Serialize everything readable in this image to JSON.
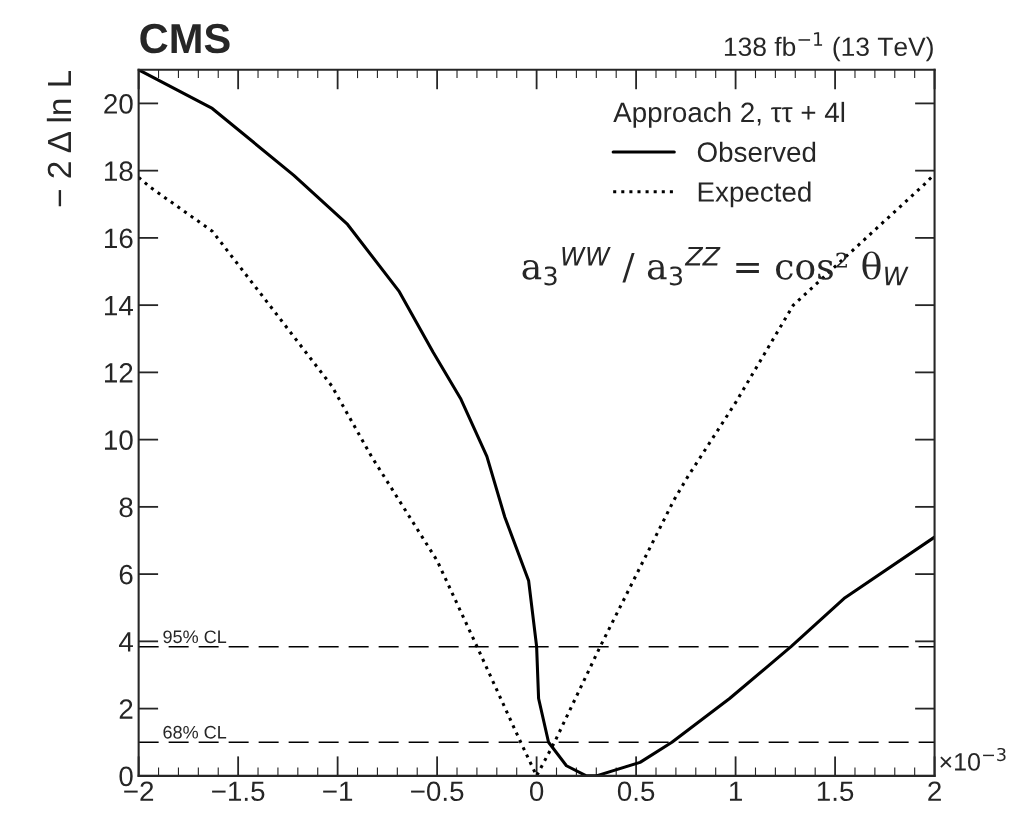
{
  "chart_data": {
    "type": "line",
    "title": "CMS",
    "subtitle": "138 fb$^{−1}$ (13 TeV)",
    "ylabel": "− 2 Δ ln L",
    "legend_title": "Approach 2, ττ + 4l",
    "legend": "top right",
    "grid": false,
    "marker": "none",
    "xlim": [
      -2,
      2
    ],
    "ylim": [
      0,
      21
    ],
    "xticks": [
      {
        "value": -2,
        "label": "−2"
      },
      {
        "value": -1.5,
        "label": "−1.5"
      },
      {
        "value": -1,
        "label": "−1"
      },
      {
        "value": -0.5,
        "label": "−0.5"
      },
      0,
      0.5,
      1,
      1.5,
      2
    ],
    "yticks": [
      0,
      2,
      4,
      6,
      8,
      10,
      12,
      14,
      16,
      18,
      20
    ],
    "series": [
      {
        "name": "Observed",
        "color": "#000000",
        "line_style": "solid",
        "x": [
          -2,
          -1.63,
          -1.22,
          -0.95,
          -0.69,
          -0.52,
          -0.38,
          -0.25,
          -0.16,
          -0.04,
          0,
          0.01,
          0.06,
          0.15,
          0.25,
          0.3,
          0.52,
          0.68,
          0.97,
          1.28,
          1.55,
          2
        ],
        "values": [
          21,
          19.85,
          17.86,
          16.4,
          14.4,
          12.6,
          11.2,
          9.5,
          7.7,
          5.8,
          3.85,
          2.3,
          1.0,
          0.3,
          0,
          0,
          0.4,
          1.0,
          2.3,
          3.85,
          5.3,
          7.1
        ]
      },
      {
        "name": "Expected",
        "color": "#000000",
        "line_style": "dotted",
        "x": [
          -2,
          -1.94,
          -1.63,
          -1.29,
          -1.03,
          -0.83,
          -0.5,
          -0.3,
          -0.08,
          0,
          0.09,
          0.32,
          0.69,
          0.76,
          1.0,
          1.29,
          1.95,
          2
        ],
        "values": [
          17.8,
          17.5,
          16.2,
          13.6,
          11.6,
          9.5,
          6.4,
          3.85,
          1.0,
          0,
          1.0,
          3.85,
          8.2,
          8.9,
          11.1,
          14.0,
          17.6,
          17.9
        ]
      }
    ],
    "ref_lines": [
      {
        "axis": "y",
        "value": 3.84,
        "label": "95% CL",
        "line_style": "dashed",
        "color": "#000000"
      },
      {
        "axis": "y",
        "value": 1,
        "label": "68% CL",
        "line_style": "dashed",
        "color": "#000000"
      }
    ],
    "annotations": [
      "a$_{3}$$^{WW}$ / a$_{3}$$^{ZZ}$ = cos² θ$_{W}$",
      "×10$^{−3}$"
    ]
  }
}
